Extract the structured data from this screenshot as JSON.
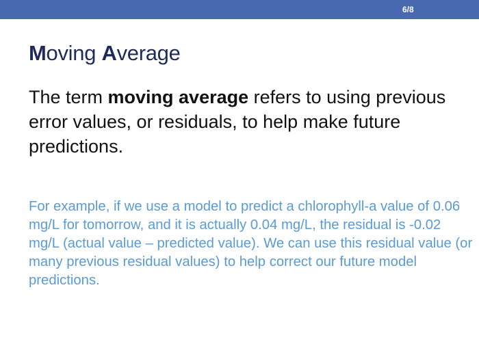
{
  "header": {
    "page_number": "6/8"
  },
  "slide": {
    "title_cap1": "M",
    "title_rest1": "oving ",
    "title_cap2": "A",
    "title_rest2": "verage",
    "definition_before": "The term ",
    "definition_bold": "moving average",
    "definition_after": " refers to using previous error values, or residuals, to help make future predictions.",
    "example": "For example, if we use a model to predict a chlorophyll-a value of 0.06 mg/L for tomorrow, and it is actually 0.04 mg/L, the residual is -0.02 mg/L (actual value – predicted value). We can use this residual value (or many previous residual values) to help correct our future model predictions."
  },
  "colors": {
    "bar": "#4868b0",
    "title": "#1f2a5a",
    "definition": "#111111",
    "example": "#5a9bd5"
  }
}
